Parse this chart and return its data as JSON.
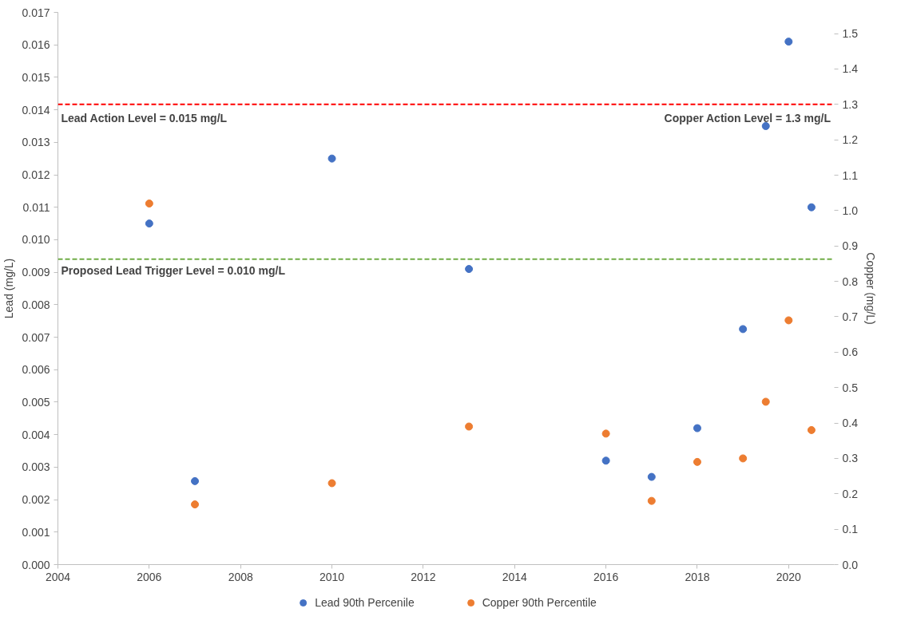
{
  "chart_data": {
    "type": "scatter",
    "ylabel": "Lead (mg/L)",
    "y2label": "Copper (mg/L)",
    "x": [
      2006,
      2007,
      2010,
      2013,
      2016,
      2017,
      2018,
      2019,
      2019.5,
      2020,
      2020.5
    ],
    "series": [
      {
        "name": "Lead 90th Percenile",
        "color": "#4472c4",
        "values": [
          0.0105,
          0.00257,
          0.0125,
          0.0091,
          0.0032,
          0.0027,
          0.0042,
          0.00725,
          0.0135,
          0.0161,
          0.011
        ]
      },
      {
        "name": "Copper 90th Percentile",
        "color": "#ed7d31",
        "axis": "y2",
        "values": [
          1.02,
          0.17,
          0.23,
          0.39,
          0.37,
          0.18,
          0.29,
          0.3,
          0.46,
          0.69,
          0.38
        ]
      }
    ],
    "marker": "circle",
    "legend": "bottom",
    "grid": false,
    "xlim": [
      2004,
      2021
    ],
    "xticks": [
      2004,
      2006,
      2008,
      2010,
      2012,
      2014,
      2016,
      2018,
      2020
    ],
    "ylim": [
      0,
      0.017
    ],
    "yticks": [
      {
        "value": 0,
        "label": "0.000"
      },
      {
        "value": 0.001,
        "label": "0.001"
      },
      {
        "value": 0.002,
        "label": "0.002"
      },
      {
        "value": 0.003,
        "label": "0.003"
      },
      {
        "value": 0.004,
        "label": "0.004"
      },
      {
        "value": 0.005,
        "label": "0.005"
      },
      {
        "value": 0.006,
        "label": "0.006"
      },
      {
        "value": 0.007,
        "label": "0.007"
      },
      {
        "value": 0.008,
        "label": "0.008"
      },
      {
        "value": 0.009,
        "label": "0.009"
      },
      {
        "value": 0.01,
        "label": "0.010"
      },
      {
        "value": 0.011,
        "label": "0.011"
      },
      {
        "value": 0.012,
        "label": "0.012"
      },
      {
        "value": 0.013,
        "label": "0.013"
      },
      {
        "value": 0.014,
        "label": "0.014"
      },
      {
        "value": 0.015,
        "label": "0.015"
      },
      {
        "value": 0.016,
        "label": "0.016"
      },
      {
        "value": 0.017,
        "label": "0.017"
      }
    ],
    "y2lim": [
      0,
      1.56
    ],
    "y2ticks": [
      {
        "value": 0,
        "label": "0.0"
      },
      {
        "value": 0.1,
        "label": "0.1"
      },
      {
        "value": 0.2,
        "label": "0.2"
      },
      {
        "value": 0.3,
        "label": "0.3"
      },
      {
        "value": 0.4,
        "label": "0.4"
      },
      {
        "value": 0.5,
        "label": "0.5"
      },
      {
        "value": 0.6,
        "label": "0.6"
      },
      {
        "value": 0.7,
        "label": "0.7"
      },
      {
        "value": 0.8,
        "label": "0.8"
      },
      {
        "value": 0.9,
        "label": "0.9"
      },
      {
        "value": 1.0,
        "label": "1.0"
      },
      {
        "value": 1.1,
        "label": "1.1"
      },
      {
        "value": 1.2,
        "label": "1.2"
      },
      {
        "value": 1.3,
        "label": "1.3"
      },
      {
        "value": 1.4,
        "label": "1.4"
      },
      {
        "value": 1.5,
        "label": "1.5"
      }
    ],
    "ref_lines": [
      {
        "axis": "y2",
        "value": 1.3,
        "color": "#ff0000",
        "line_style": "dashed"
      },
      {
        "axis": "y",
        "value": 0.0094,
        "color": "#70ad47",
        "line_style": "dashed"
      }
    ],
    "annotations": [
      {
        "text": "Lead Action Level = 0.015 mg/L",
        "y": 0.0141
      },
      {
        "text": "Copper Action Level = 1.3 mg/L",
        "y": 0.0141
      },
      {
        "text": "Proposed Lead Trigger Level = 0.010 mg/L",
        "y": 0.0094
      }
    ]
  }
}
